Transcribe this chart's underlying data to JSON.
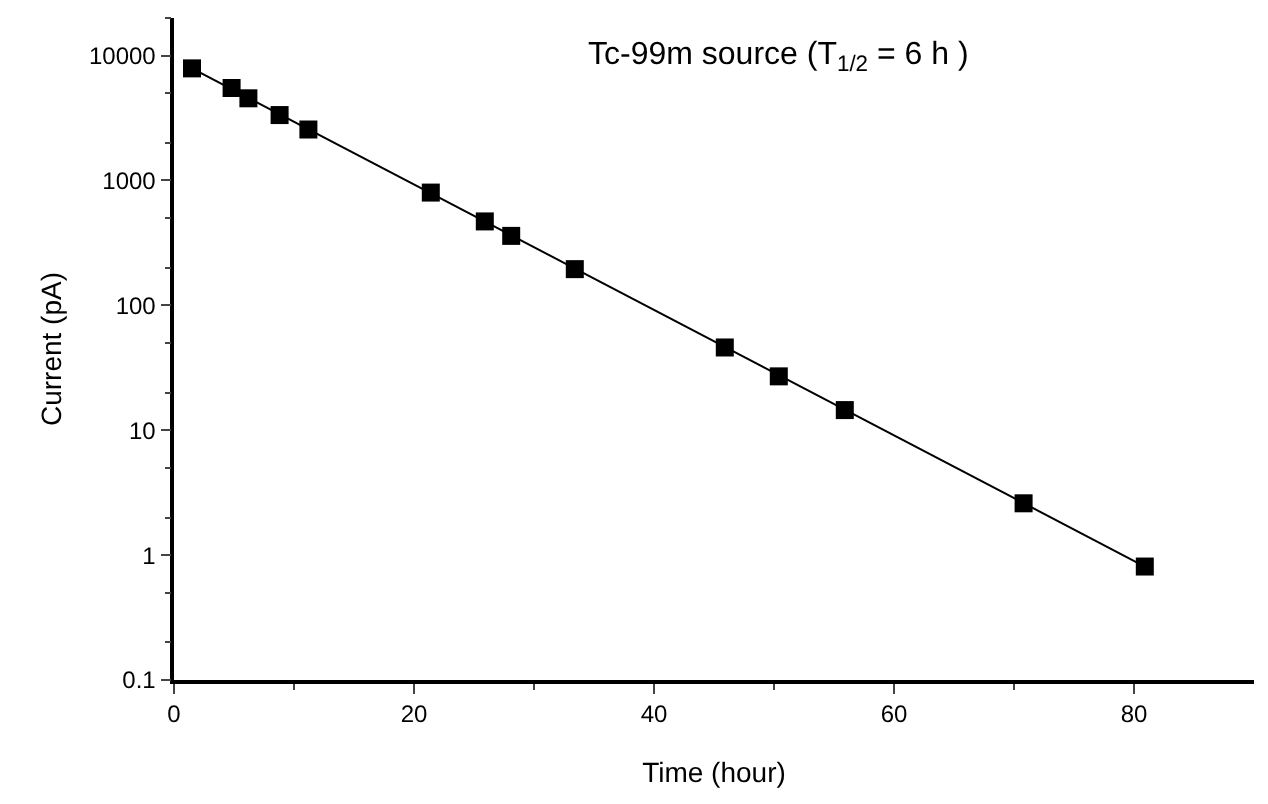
{
  "chart_data": {
    "type": "scatter",
    "xlabel": "Time (hour)",
    "ylabel": "Current (pA)",
    "annotations": [
      "Tc-99m source (T$_{1/2}$ = 6 h )"
    ],
    "xlim": [
      0,
      90
    ],
    "xticks": [
      0,
      20,
      40,
      60,
      80
    ],
    "ylim": [
      0.1,
      20000
    ],
    "yticks": [
      0.1,
      1,
      10,
      100,
      1000,
      10000
    ],
    "log": "y",
    "grid": false,
    "series": [
      {
        "type": "scatter",
        "marker": "square",
        "color": "#000000",
        "x": [
          1.5,
          4.8,
          6.2,
          8.8,
          11.2,
          21.4,
          25.9,
          28.1,
          33.4,
          45.9,
          50.4,
          55.9,
          70.8,
          80.9
        ],
        "values": [
          7900,
          5500,
          4550,
          3340,
          2560,
          800,
          470,
          360,
          195,
          46,
          27,
          14.5,
          2.6,
          0.81
        ]
      },
      {
        "type": "line",
        "marker": "none",
        "color": "#000000",
        "line_style": "solid",
        "x": [
          1.5,
          80.9
        ],
        "values": [
          7900,
          0.81
        ]
      }
    ]
  }
}
